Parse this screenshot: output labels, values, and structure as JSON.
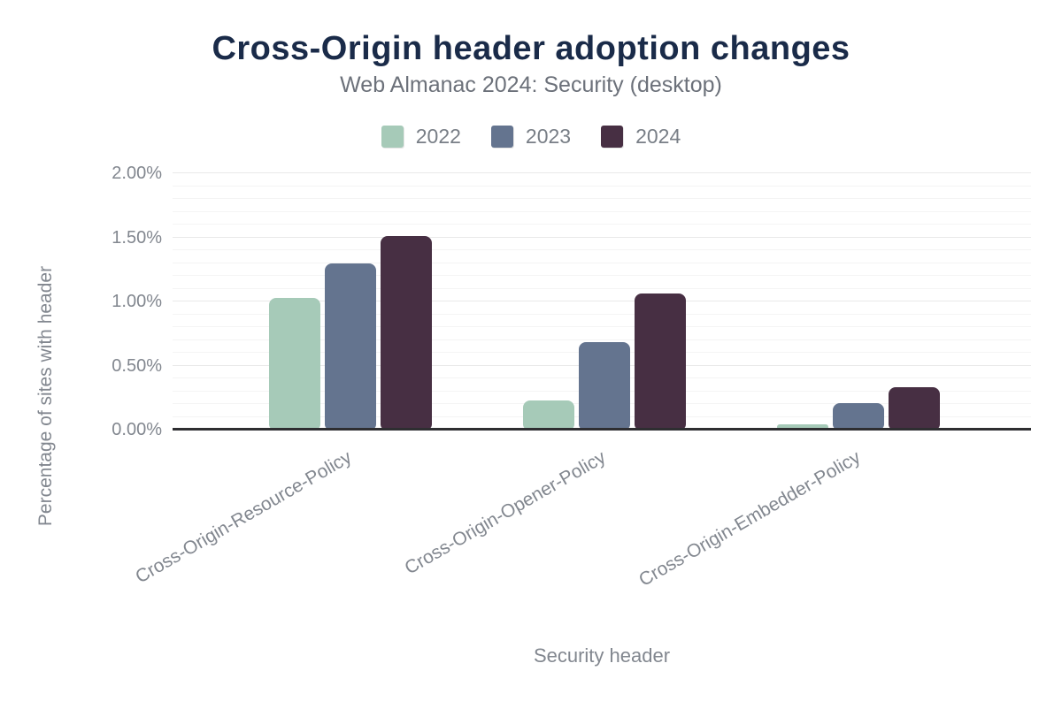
{
  "title": "Cross-Origin header adoption changes",
  "subtitle": "Web Almanac 2024: Security (desktop)",
  "colors": {
    "title_text": "#1a2b49",
    "muted_text": "#82878f",
    "axis_line": "#2e2e31",
    "grid_minor": "#f4f4f4",
    "grid_major": "#e9e9e9",
    "background": "#ffffff"
  },
  "chart_data": {
    "type": "bar",
    "title": "Cross-Origin header adoption changes",
    "subtitle": "Web Almanac 2024: Security (desktop)",
    "categories": [
      "Cross-Origin-Resource-Policy",
      "Cross-Origin-Opener-Policy",
      "Cross-Origin-Embedder-Policy"
    ],
    "series": [
      {
        "name": "2022",
        "color": "#a6cab8",
        "values": [
          1.03,
          0.23,
          0.04
        ]
      },
      {
        "name": "2023",
        "color": "#64748f",
        "values": [
          1.3,
          0.68,
          0.21
        ]
      },
      {
        "name": "2024",
        "color": "#472f43",
        "values": [
          1.51,
          1.06,
          0.33
        ]
      }
    ],
    "xlabel": "Security header",
    "ylabel": "Percentage of sites with header",
    "ylim": [
      0,
      2.0
    ],
    "ytick_step_major": 0.5,
    "ytick_step_minor": 0.1,
    "yticks": [
      {
        "value": 0.0,
        "label": "0.00%"
      },
      {
        "value": 0.5,
        "label": "0.50%"
      },
      {
        "value": 1.0,
        "label": "1.00%"
      },
      {
        "value": 1.5,
        "label": "1.50%"
      },
      {
        "value": 2.0,
        "label": "2.00%"
      }
    ],
    "grid": "horizontal-minor-and-major",
    "legend_position": "top"
  }
}
